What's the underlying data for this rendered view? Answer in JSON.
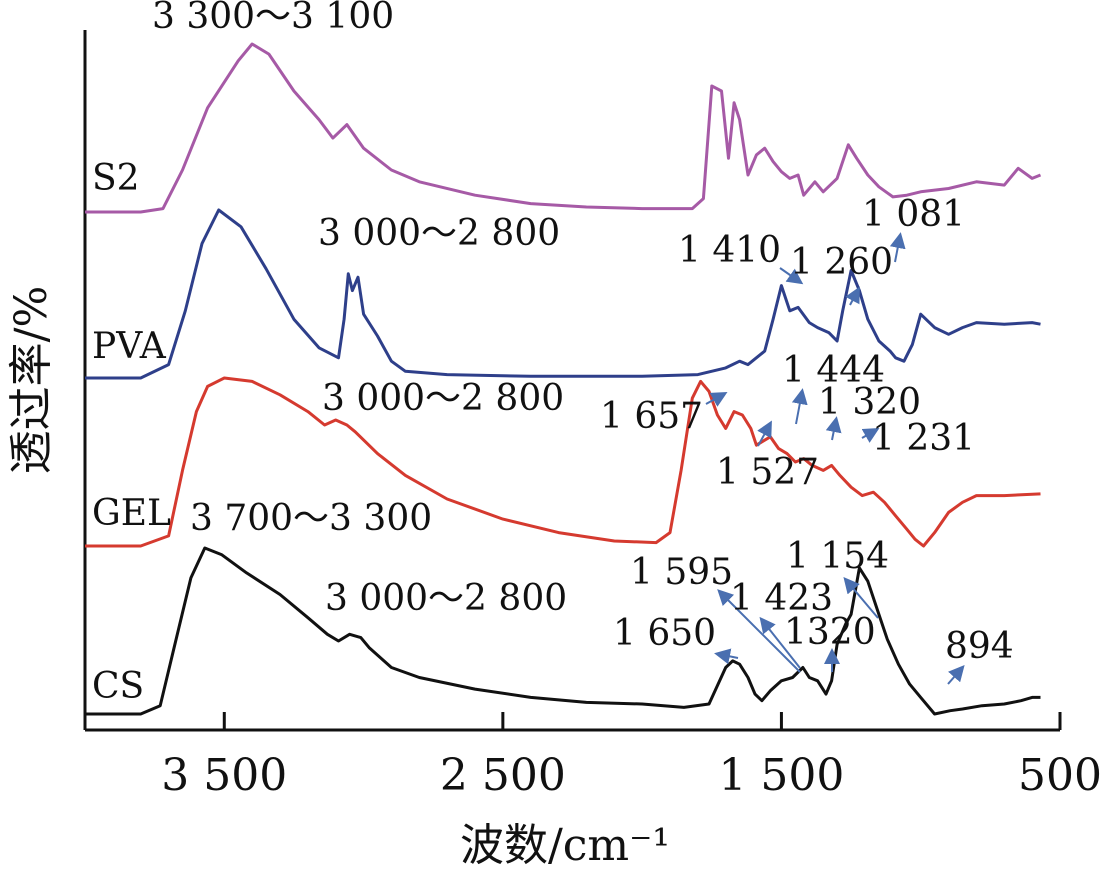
{
  "chart_data": {
    "type": "line",
    "title": "",
    "xlabel": "波数/cm⁻¹",
    "ylabel": "透过率/%",
    "xlim": [
      4000,
      500
    ],
    "x_ticks": [
      {
        "value": 3500,
        "label": "3 500"
      },
      {
        "value": 2500,
        "label": "2 500"
      },
      {
        "value": 1500,
        "label": "1 500"
      },
      {
        "value": 500,
        "label": "500"
      }
    ],
    "grid": false,
    "legend": "none (series labelled at left of each curve)",
    "series": [
      {
        "name": "S2",
        "color": "#a65aa6",
        "points": [
          [
            4000,
            0.0
          ],
          [
            3800,
            0.0
          ],
          [
            3720,
            0.02
          ],
          [
            3650,
            0.25
          ],
          [
            3560,
            0.62
          ],
          [
            3450,
            0.9
          ],
          [
            3400,
            1.0
          ],
          [
            3340,
            0.94
          ],
          [
            3250,
            0.72
          ],
          [
            3160,
            0.55
          ],
          [
            3110,
            0.44
          ],
          [
            3060,
            0.52
          ],
          [
            3000,
            0.38
          ],
          [
            2900,
            0.25
          ],
          [
            2800,
            0.18
          ],
          [
            2600,
            0.1
          ],
          [
            2400,
            0.05
          ],
          [
            2200,
            0.03
          ],
          [
            2000,
            0.02
          ],
          [
            1820,
            0.02
          ],
          [
            1780,
            0.08
          ],
          [
            1750,
            0.75
          ],
          [
            1715,
            0.72
          ],
          [
            1690,
            0.32
          ],
          [
            1670,
            0.65
          ],
          [
            1650,
            0.55
          ],
          [
            1620,
            0.22
          ],
          [
            1590,
            0.34
          ],
          [
            1560,
            0.38
          ],
          [
            1530,
            0.3
          ],
          [
            1500,
            0.24
          ],
          [
            1470,
            0.2
          ],
          [
            1440,
            0.22
          ],
          [
            1420,
            0.1
          ],
          [
            1380,
            0.18
          ],
          [
            1350,
            0.12
          ],
          [
            1300,
            0.2
          ],
          [
            1260,
            0.4
          ],
          [
            1230,
            0.32
          ],
          [
            1190,
            0.22
          ],
          [
            1150,
            0.15
          ],
          [
            1100,
            0.09
          ],
          [
            1050,
            0.1
          ],
          [
            1000,
            0.12
          ],
          [
            900,
            0.14
          ],
          [
            800,
            0.18
          ],
          [
            700,
            0.16
          ],
          [
            650,
            0.26
          ],
          [
            600,
            0.2
          ],
          [
            570,
            0.22
          ]
        ]
      },
      {
        "name": "PVA",
        "color": "#2e3f8a",
        "points": [
          [
            4000,
            0.0
          ],
          [
            3800,
            0.0
          ],
          [
            3700,
            0.08
          ],
          [
            3640,
            0.4
          ],
          [
            3580,
            0.8
          ],
          [
            3520,
            1.0
          ],
          [
            3440,
            0.9
          ],
          [
            3350,
            0.65
          ],
          [
            3250,
            0.35
          ],
          [
            3160,
            0.18
          ],
          [
            3090,
            0.12
          ],
          [
            3070,
            0.35
          ],
          [
            3055,
            0.62
          ],
          [
            3040,
            0.52
          ],
          [
            3020,
            0.6
          ],
          [
            3000,
            0.38
          ],
          [
            2950,
            0.25
          ],
          [
            2900,
            0.1
          ],
          [
            2850,
            0.04
          ],
          [
            2700,
            0.02
          ],
          [
            2400,
            0.01
          ],
          [
            2000,
            0.01
          ],
          [
            1800,
            0.02
          ],
          [
            1700,
            0.06
          ],
          [
            1650,
            0.1
          ],
          [
            1620,
            0.08
          ],
          [
            1560,
            0.16
          ],
          [
            1530,
            0.35
          ],
          [
            1500,
            0.55
          ],
          [
            1470,
            0.4
          ],
          [
            1440,
            0.42
          ],
          [
            1400,
            0.33
          ],
          [
            1370,
            0.3
          ],
          [
            1330,
            0.27
          ],
          [
            1300,
            0.22
          ],
          [
            1280,
            0.4
          ],
          [
            1250,
            0.64
          ],
          [
            1220,
            0.52
          ],
          [
            1190,
            0.35
          ],
          [
            1150,
            0.22
          ],
          [
            1110,
            0.16
          ],
          [
            1090,
            0.12
          ],
          [
            1060,
            0.1
          ],
          [
            1030,
            0.2
          ],
          [
            1000,
            0.38
          ],
          [
            950,
            0.3
          ],
          [
            900,
            0.26
          ],
          [
            850,
            0.3
          ],
          [
            800,
            0.33
          ],
          [
            700,
            0.32
          ],
          [
            600,
            0.33
          ],
          [
            570,
            0.32
          ]
        ]
      },
      {
        "name": "GEL",
        "color": "#d53a2f",
        "points": [
          [
            4000,
            0.0
          ],
          [
            3800,
            0.0
          ],
          [
            3700,
            0.06
          ],
          [
            3650,
            0.45
          ],
          [
            3600,
            0.8
          ],
          [
            3560,
            0.95
          ],
          [
            3500,
            1.0
          ],
          [
            3400,
            0.98
          ],
          [
            3300,
            0.9
          ],
          [
            3200,
            0.8
          ],
          [
            3140,
            0.72
          ],
          [
            3100,
            0.75
          ],
          [
            3060,
            0.72
          ],
          [
            3030,
            0.68
          ],
          [
            2950,
            0.55
          ],
          [
            2850,
            0.42
          ],
          [
            2700,
            0.28
          ],
          [
            2500,
            0.16
          ],
          [
            2300,
            0.08
          ],
          [
            2100,
            0.03
          ],
          [
            1950,
            0.02
          ],
          [
            1900,
            0.08
          ],
          [
            1860,
            0.45
          ],
          [
            1820,
            0.88
          ],
          [
            1790,
            0.98
          ],
          [
            1760,
            0.92
          ],
          [
            1730,
            0.78
          ],
          [
            1700,
            0.7
          ],
          [
            1670,
            0.8
          ],
          [
            1640,
            0.78
          ],
          [
            1610,
            0.7
          ],
          [
            1590,
            0.6
          ],
          [
            1570,
            0.62
          ],
          [
            1540,
            0.65
          ],
          [
            1510,
            0.58
          ],
          [
            1480,
            0.55
          ],
          [
            1450,
            0.5
          ],
          [
            1420,
            0.52
          ],
          [
            1390,
            0.48
          ],
          [
            1350,
            0.45
          ],
          [
            1320,
            0.48
          ],
          [
            1290,
            0.42
          ],
          [
            1250,
            0.35
          ],
          [
            1210,
            0.3
          ],
          [
            1170,
            0.32
          ],
          [
            1130,
            0.26
          ],
          [
            1090,
            0.18
          ],
          [
            1050,
            0.1
          ],
          [
            1020,
            0.04
          ],
          [
            990,
            0.0
          ],
          [
            950,
            0.08
          ],
          [
            900,
            0.2
          ],
          [
            850,
            0.26
          ],
          [
            800,
            0.3
          ],
          [
            750,
            0.3
          ],
          [
            700,
            0.3
          ],
          [
            570,
            0.31
          ]
        ]
      },
      {
        "name": "CS",
        "color": "#111111",
        "points": [
          [
            4000,
            0.0
          ],
          [
            3800,
            0.0
          ],
          [
            3730,
            0.05
          ],
          [
            3680,
            0.4
          ],
          [
            3620,
            0.82
          ],
          [
            3570,
            1.0
          ],
          [
            3510,
            0.96
          ],
          [
            3420,
            0.85
          ],
          [
            3300,
            0.72
          ],
          [
            3200,
            0.58
          ],
          [
            3130,
            0.48
          ],
          [
            3090,
            0.44
          ],
          [
            3050,
            0.48
          ],
          [
            3010,
            0.46
          ],
          [
            2980,
            0.4
          ],
          [
            2900,
            0.28
          ],
          [
            2800,
            0.22
          ],
          [
            2600,
            0.15
          ],
          [
            2400,
            0.1
          ],
          [
            2200,
            0.07
          ],
          [
            2000,
            0.06
          ],
          [
            1850,
            0.04
          ],
          [
            1760,
            0.06
          ],
          [
            1700,
            0.28
          ],
          [
            1675,
            0.32
          ],
          [
            1650,
            0.3
          ],
          [
            1620,
            0.22
          ],
          [
            1595,
            0.12
          ],
          [
            1570,
            0.08
          ],
          [
            1540,
            0.14
          ],
          [
            1500,
            0.2
          ],
          [
            1460,
            0.22
          ],
          [
            1423,
            0.28
          ],
          [
            1400,
            0.22
          ],
          [
            1370,
            0.2
          ],
          [
            1340,
            0.12
          ],
          [
            1320,
            0.2
          ],
          [
            1300,
            0.42
          ],
          [
            1270,
            0.54
          ],
          [
            1250,
            0.6
          ],
          [
            1220,
            0.88
          ],
          [
            1190,
            0.8
          ],
          [
            1154,
            0.62
          ],
          [
            1120,
            0.45
          ],
          [
            1080,
            0.3
          ],
          [
            1040,
            0.18
          ],
          [
            1000,
            0.1
          ],
          [
            950,
            0.0
          ],
          [
            894,
            0.02
          ],
          [
            850,
            0.03
          ],
          [
            780,
            0.05
          ],
          [
            700,
            0.06
          ],
          [
            640,
            0.08
          ],
          [
            600,
            0.1
          ],
          [
            570,
            0.1
          ]
        ]
      }
    ],
    "annotations": [
      {
        "text": "3 300～3 100",
        "series": "S2"
      },
      {
        "text": "3 000～2 800",
        "series": "PVA"
      },
      {
        "text": "1 410",
        "series": "PVA"
      },
      {
        "text": "1 260",
        "series": "PVA"
      },
      {
        "text": "1 081",
        "series": "PVA"
      },
      {
        "text": "3 000～2 800",
        "series": "GEL"
      },
      {
        "text": "1 657",
        "series": "GEL"
      },
      {
        "text": "1 444",
        "series": "GEL"
      },
      {
        "text": "1 320",
        "series": "GEL"
      },
      {
        "text": "1 231",
        "series": "GEL"
      },
      {
        "text": "1 527",
        "series": "GEL"
      },
      {
        "text": "3 700～3 300",
        "series": "CS"
      },
      {
        "text": "3 000～2 800",
        "series": "CS"
      },
      {
        "text": "1 595",
        "series": "CS"
      },
      {
        "text": "1 423",
        "series": "CS"
      },
      {
        "text": "1 154",
        "series": "CS"
      },
      {
        "text": "1 650",
        "series": "CS"
      },
      {
        "text": "1320",
        "series": "CS"
      },
      {
        "text": "894",
        "series": "CS"
      }
    ]
  }
}
